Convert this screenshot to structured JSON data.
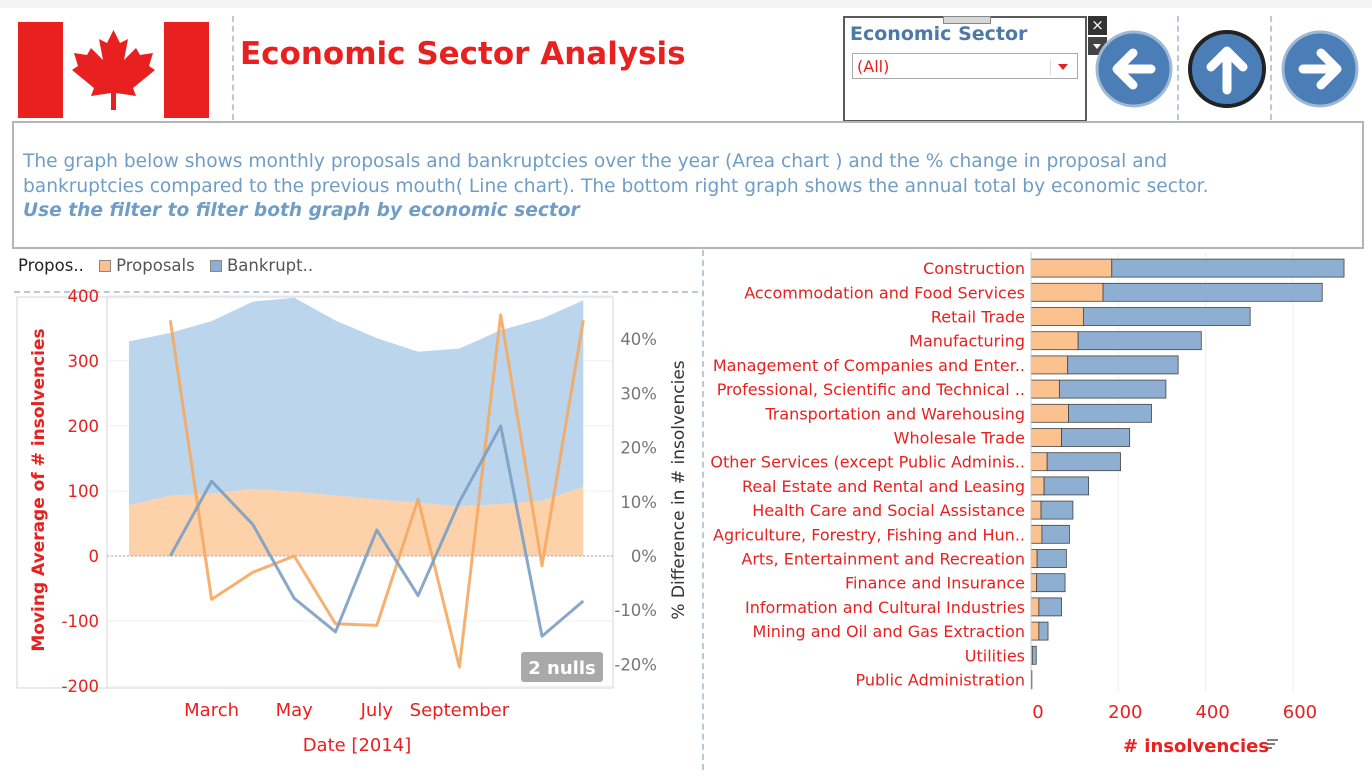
{
  "header": {
    "title": "Economic Sector Analysis",
    "flag_icon": "canada-flag-icon"
  },
  "filter": {
    "title": "Economic Sector",
    "selected": "(All)",
    "close_label": "×"
  },
  "nav": {
    "back_icon": "arrow-left-icon",
    "up_icon": "arrow-up-icon",
    "forward_icon": "arrow-right-icon"
  },
  "description": {
    "line1": "The graph below shows monthly proposals and bankruptcies over the year (Area chart ) and the % change in proposal and",
    "line2": "bankruptcies compared to the previous mouth( Line chart). The bottom right graph shows the annual total by economic sector.",
    "line3": "Use the filter to filter both graph by economic sector"
  },
  "legend": {
    "title": "Propos..",
    "items": [
      {
        "label": "Proposals",
        "color": "#fbc18f"
      },
      {
        "label": "Bankrupt..",
        "color": "#8eaed2"
      }
    ]
  },
  "colors": {
    "proposals": "#f5a862",
    "bankruptcies": "#7b9fc4",
    "title_red": "#e8201f",
    "axis_gray": "#777777"
  },
  "chart_data": [
    {
      "type": "area",
      "xlabel": "Date [2014]",
      "ylabel": "Moving Average of # insolvencies",
      "y2label": "% Difference in # insolvencies",
      "x_ticks": [
        "March",
        "May",
        "July",
        "September"
      ],
      "x_tick_months": [
        3,
        5,
        7,
        9
      ],
      "ylim": [
        -200,
        400
      ],
      "y_ticks": [
        400,
        300,
        200,
        100,
        0,
        -100,
        -200
      ],
      "y2lim": [
        -20,
        45
      ],
      "y2_ticks": [
        "40%",
        "30%",
        "20%",
        "10%",
        "0%",
        "-10%",
        "-20%"
      ],
      "y2_tick_values": [
        40,
        30,
        20,
        10,
        0,
        -10,
        -20
      ],
      "months": [
        1,
        2,
        3,
        4,
        5,
        6,
        7,
        8,
        9,
        10,
        11,
        12
      ],
      "series": [
        {
          "name": "Proposals",
          "kind": "area",
          "values": [
            78,
            93,
            96,
            103,
            99,
            93,
            87,
            82,
            76,
            80,
            85,
            106
          ]
        },
        {
          "name": "Bankrupt..",
          "kind": "area",
          "values": [
            252,
            250,
            265,
            288,
            298,
            269,
            248,
            232,
            243,
            267,
            280,
            287
          ]
        },
        {
          "name": "Proposals",
          "kind": "line_pct",
          "values": [
            null,
            43.5,
            -8,
            -3,
            0,
            -12.5,
            -12.8,
            10.5,
            -20.5,
            44.5,
            -1.8,
            43.5
          ]
        },
        {
          "name": "Bankrupt..",
          "kind": "line_pct",
          "values": [
            null,
            0,
            13.8,
            5.8,
            -7.8,
            -14,
            4.8,
            -7.3,
            10,
            24,
            -14.8,
            -8.3
          ]
        }
      ],
      "nulls_label": "2 nulls",
      "grid": true
    },
    {
      "type": "bar",
      "orientation": "horizontal",
      "stacked": true,
      "xlabel": "# insolvencies",
      "x_ticks": [
        0,
        200,
        400,
        600
      ],
      "xlim": [
        0,
        750
      ],
      "categories": [
        "Construction",
        "Accommodation and Food Services",
        "Retail Trade",
        "Manufacturing",
        "Management of Companies and Enter..",
        "Professional, Scientific and Technical ..",
        "Transportation and Warehousing",
        "Wholesale Trade",
        "Other Services (except Public Adminis..",
        "Real Estate and Rental and Leasing",
        "Health Care and Social Assistance",
        "Agriculture, Forestry, Fishing and Hun..",
        "Arts, Entertainment and Recreation",
        "Finance and Insurance",
        "Information and Cultural Industries",
        "Mining and Oil and Gas Extraction",
        "Utilities",
        "Public Administration"
      ],
      "series": [
        {
          "name": "Proposals",
          "values": [
            185,
            165,
            120,
            108,
            84,
            65,
            86,
            70,
            37,
            30,
            23,
            25,
            14,
            13,
            18,
            18,
            3,
            0
          ]
        },
        {
          "name": "Bankrupt..",
          "values": [
            532,
            502,
            382,
            282,
            253,
            244,
            190,
            156,
            168,
            102,
            73,
            63,
            67,
            65,
            52,
            21,
            9,
            2
          ]
        }
      ],
      "grid": true
    }
  ]
}
